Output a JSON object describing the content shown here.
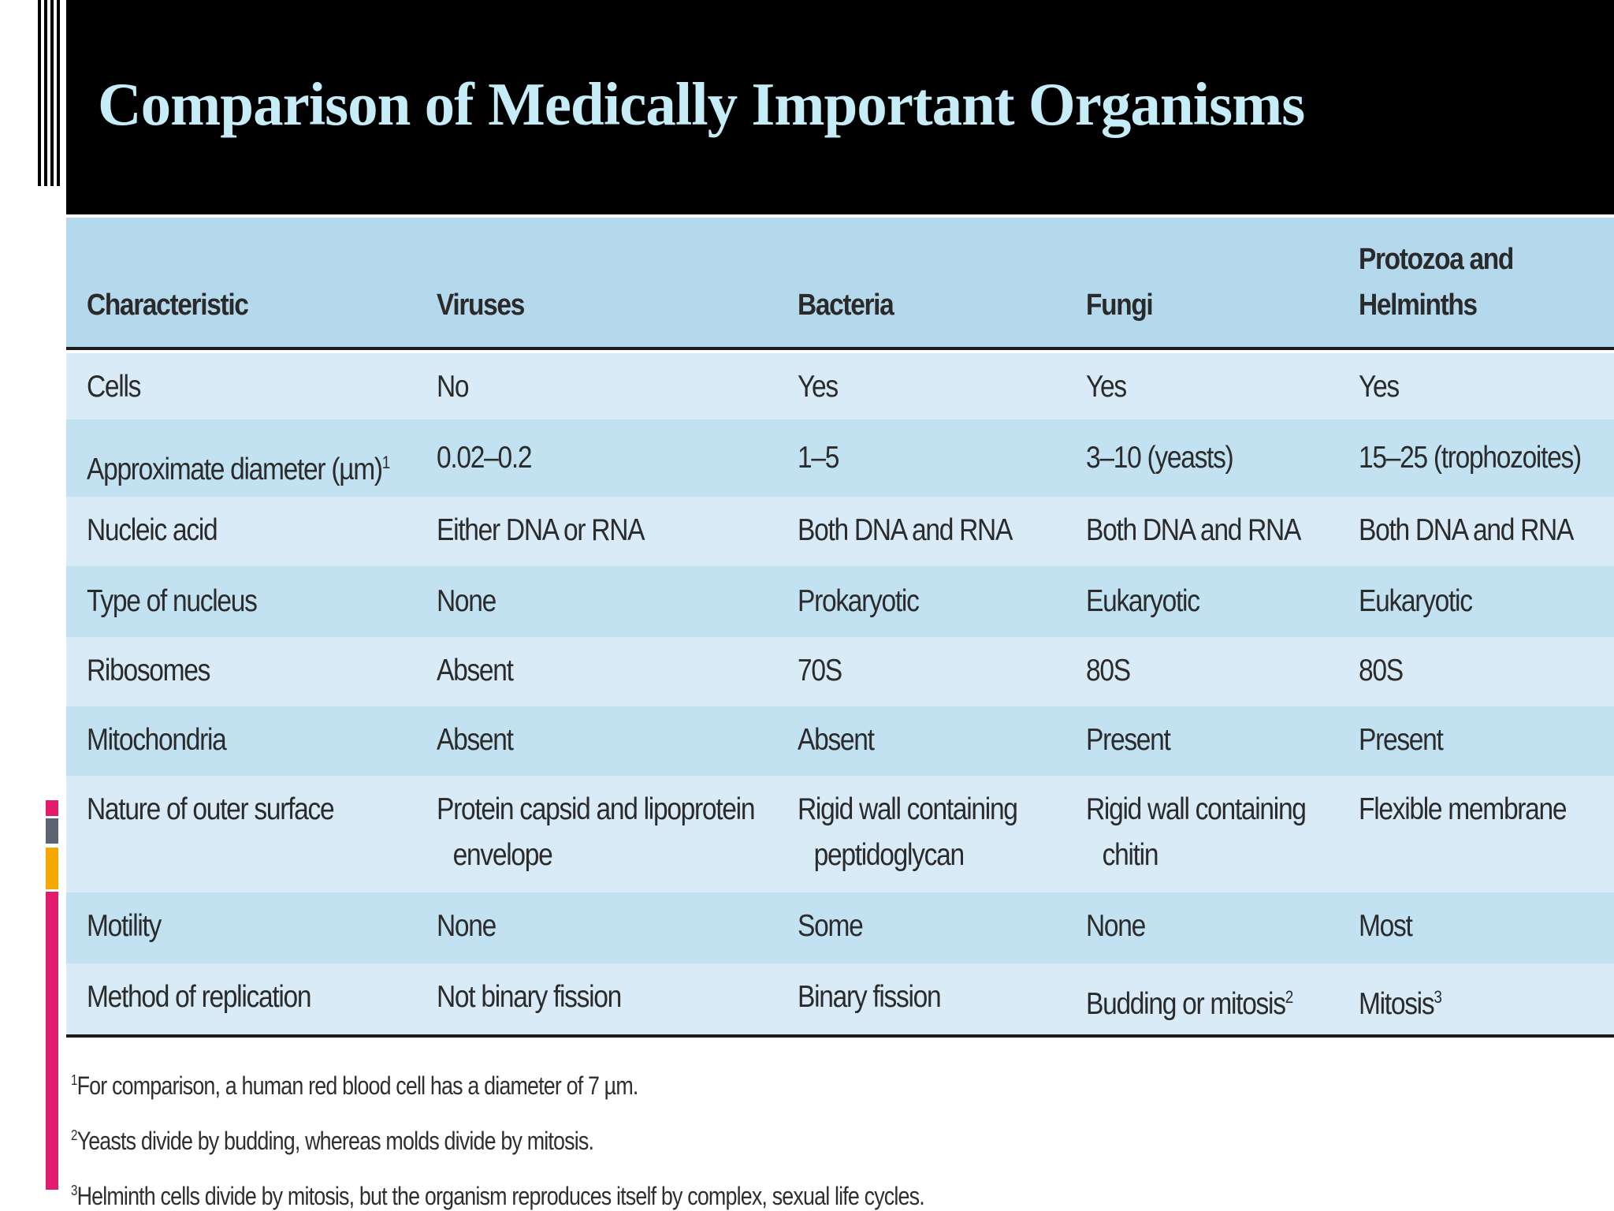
{
  "slide": {
    "title": "Comparison of Medically Important Organisms"
  },
  "table": {
    "headers": [
      "Characteristic",
      "Viruses",
      "Bacteria",
      "Fungi",
      "Protozoa and",
      "Helminths"
    ],
    "rows": [
      {
        "characteristic": "Cells",
        "viruses": "No",
        "bacteria": "Yes",
        "fungi": "Yes",
        "protozoa_helminths": "Yes"
      },
      {
        "characteristic": "Approximate diameter (µm)",
        "characteristic_sup": "1",
        "viruses": "0.02–0.2",
        "bacteria": "1–5",
        "fungi": "3–10 (yeasts)",
        "protozoa_helminths": "15–25 (trophozoites)"
      },
      {
        "characteristic": "Nucleic acid",
        "viruses": "Either DNA or RNA",
        "bacteria": "Both DNA and RNA",
        "fungi": "Both DNA and RNA",
        "protozoa_helminths": "Both DNA and RNA"
      },
      {
        "characteristic": "Type of nucleus",
        "viruses": "None",
        "bacteria": "Prokaryotic",
        "fungi": "Eukaryotic",
        "protozoa_helminths": "Eukaryotic"
      },
      {
        "characteristic": "Ribosomes",
        "viruses": "Absent",
        "bacteria": "70S",
        "fungi": "80S",
        "protozoa_helminths": "80S"
      },
      {
        "characteristic": "Mitochondria",
        "viruses": "Absent",
        "bacteria": "Absent",
        "fungi": "Present",
        "protozoa_helminths": "Present"
      },
      {
        "characteristic": "Nature of outer surface",
        "viruses": "Protein capsid and lipoprotein",
        "viruses_line2": "envelope",
        "bacteria": "Rigid wall containing",
        "bacteria_line2": "peptidoglycan",
        "fungi": "Rigid wall containing",
        "fungi_line2": "chitin",
        "protozoa_helminths": "Flexible membrane"
      },
      {
        "characteristic": "Motility",
        "viruses": "None",
        "bacteria": "Some",
        "fungi": "None",
        "protozoa_helminths": "Most"
      },
      {
        "characteristic": "Method of replication",
        "viruses": "Not binary fission",
        "bacteria": "Binary fission",
        "fungi": "Budding or mitosis",
        "fungi_sup": "2",
        "protozoa_helminths": "Mitosis",
        "protozoa_helminths_sup": "3"
      }
    ]
  },
  "footnotes": [
    {
      "mark": "1",
      "text": "For comparison, a human red blood cell has a diameter of 7 µm."
    },
    {
      "mark": "2",
      "text": "Yeasts divide by budding, whereas molds divide by mitosis."
    },
    {
      "mark": "3",
      "text": "Helminth cells divide by mitosis, but the organism reproduces itself by complex, sexual life cycles."
    }
  ],
  "colors": {
    "title_text": "#c6ecf7",
    "title_band": "#000000",
    "header_fill": "#b4d9ec",
    "row_light": "#d8ebf6",
    "row_mid": "#c2e2f2",
    "accent_pink": "#e31b6d",
    "accent_gold": "#f5a800",
    "accent_gray": "#5b6470"
  }
}
